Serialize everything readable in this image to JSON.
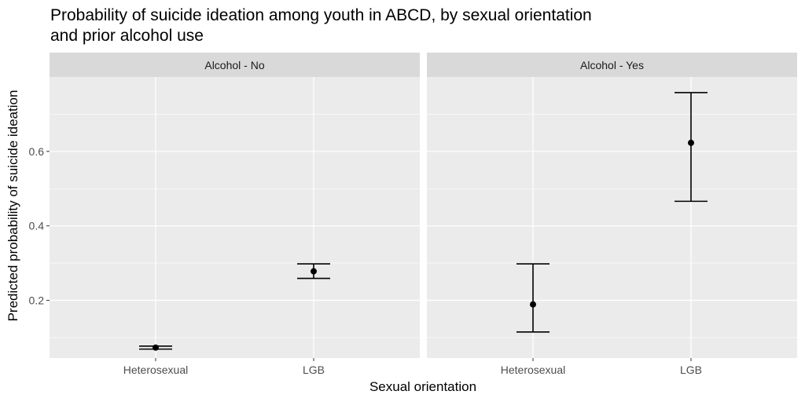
{
  "chart_data": {
    "type": "scatter",
    "title": "Probability of suicide ideation among youth in ABCD, by sexual orientation and prior alcohol use",
    "title_lines": [
      "Probability of suicide ideation among youth in ABCD, by sexual orientation",
      "and prior alcohol use"
    ],
    "xlabel": "Sexual orientation",
    "ylabel": "Predicted probability of suicide ideation",
    "categories": [
      "Heterosexual",
      "LGB"
    ],
    "ylim": [
      0.045,
      0.8
    ],
    "yticks": [
      0.2,
      0.4,
      0.6
    ],
    "ytick_labels": [
      "0.2",
      "0.4",
      "0.6"
    ],
    "grid": true,
    "facets": [
      {
        "label": "Alcohol - No",
        "points": [
          {
            "x": "Heterosexual",
            "y": 0.073,
            "lower": 0.069,
            "upper": 0.077
          },
          {
            "x": "LGB",
            "y": 0.278,
            "lower": 0.259,
            "upper": 0.298
          }
        ]
      },
      {
        "label": "Alcohol - Yes",
        "points": [
          {
            "x": "Heterosexual",
            "y": 0.189,
            "lower": 0.115,
            "upper": 0.298
          },
          {
            "x": "LGB",
            "y": 0.623,
            "lower": 0.466,
            "upper": 0.758
          }
        ]
      }
    ],
    "colors": {
      "panel": "#ebebeb",
      "strip": "#d9d9d9",
      "grid": "#ffffff",
      "marks": "#000000"
    }
  }
}
